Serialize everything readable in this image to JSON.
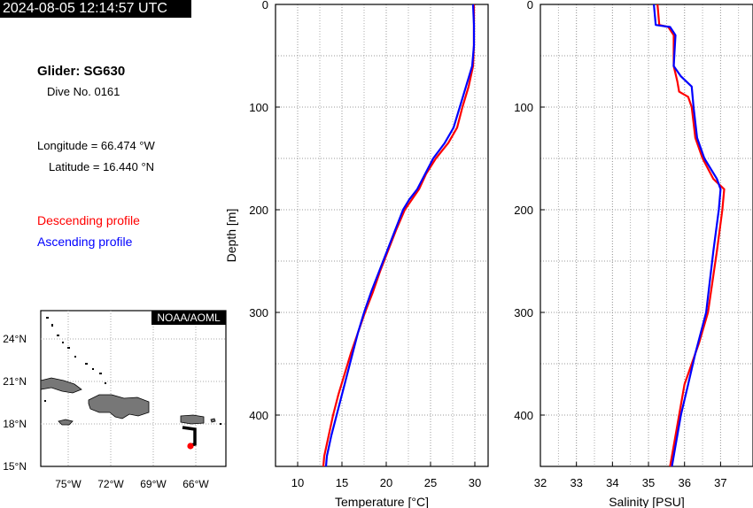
{
  "header": {
    "timestamp": "2024-08-05 12:14:57 UTC",
    "glider": "Glider: SG630",
    "dive": "Dive No. 0161",
    "longitude": "Longitude = 66.474 °W",
    "latitude": "Latitude = 16.440 °N",
    "descending_label": "Descending profile",
    "ascending_label": "Ascending profile"
  },
  "map": {
    "credit": "NOAA/AOML",
    "lat_ticks": [
      "24°N",
      "21°N",
      "18°N",
      "15°N"
    ],
    "lon_ticks": [
      "75°W",
      "72°W",
      "69°W",
      "66°W"
    ]
  },
  "colors": {
    "descending": "#ff0000",
    "ascending": "#0000ff",
    "grid": "#999999"
  },
  "chart_data": [
    {
      "type": "line",
      "xlabel": "Temperature [°C]",
      "ylabel": "Depth [m]",
      "xlim": [
        7.5,
        31.5
      ],
      "ylim": [
        0,
        450
      ],
      "y_inverted": true,
      "xticks": [
        10,
        15,
        20,
        25,
        30
      ],
      "yticks": [
        0,
        100,
        200,
        300,
        400
      ],
      "grid": true,
      "series": [
        {
          "name": "Descending profile",
          "color": "#ff0000",
          "points": [
            [
              29.9,
              0
            ],
            [
              29.9,
              20
            ],
            [
              29.9,
              40
            ],
            [
              29.8,
              60
            ],
            [
              29.3,
              80
            ],
            [
              28.6,
              100
            ],
            [
              28.0,
              120
            ],
            [
              27.0,
              135
            ],
            [
              25.6,
              150
            ],
            [
              24.5,
              165
            ],
            [
              23.7,
              180
            ],
            [
              22.9,
              190
            ],
            [
              22.1,
              200
            ],
            [
              21.1,
              220
            ],
            [
              20.2,
              240
            ],
            [
              19.3,
              260
            ],
            [
              18.5,
              280
            ],
            [
              17.6,
              300
            ],
            [
              16.8,
              320
            ],
            [
              16.0,
              340
            ],
            [
              15.3,
              360
            ],
            [
              14.6,
              380
            ],
            [
              14.0,
              400
            ],
            [
              13.5,
              420
            ],
            [
              13.0,
              440
            ],
            [
              12.9,
              450
            ]
          ]
        },
        {
          "name": "Ascending profile",
          "color": "#0000ff",
          "points": [
            [
              29.8,
              0
            ],
            [
              29.9,
              20
            ],
            [
              29.9,
              40
            ],
            [
              29.7,
              60
            ],
            [
              29.0,
              80
            ],
            [
              28.3,
              100
            ],
            [
              27.6,
              120
            ],
            [
              26.6,
              135
            ],
            [
              25.3,
              150
            ],
            [
              24.4,
              165
            ],
            [
              23.5,
              180
            ],
            [
              22.6,
              190
            ],
            [
              21.9,
              200
            ],
            [
              21.0,
              220
            ],
            [
              20.1,
              240
            ],
            [
              19.2,
              260
            ],
            [
              18.3,
              280
            ],
            [
              17.5,
              300
            ],
            [
              16.8,
              320
            ],
            [
              16.2,
              340
            ],
            [
              15.6,
              360
            ],
            [
              15.0,
              380
            ],
            [
              14.4,
              400
            ],
            [
              13.8,
              420
            ],
            [
              13.3,
              440
            ],
            [
              13.2,
              450
            ]
          ]
        }
      ]
    },
    {
      "type": "line",
      "xlabel": "Salinity [PSU]",
      "ylabel": "",
      "xlim": [
        32,
        37.9
      ],
      "ylim": [
        0,
        450
      ],
      "y_inverted": true,
      "xticks": [
        32,
        33,
        34,
        35,
        36,
        37
      ],
      "yticks": [
        0,
        100,
        200,
        300,
        400
      ],
      "grid": true,
      "series": [
        {
          "name": "Descending profile",
          "color": "#ff0000",
          "points": [
            [
              35.25,
              0
            ],
            [
              35.3,
              20
            ],
            [
              35.55,
              22
            ],
            [
              35.7,
              30
            ],
            [
              35.7,
              60
            ],
            [
              35.8,
              75
            ],
            [
              35.85,
              85
            ],
            [
              36.1,
              90
            ],
            [
              36.2,
              100
            ],
            [
              36.3,
              130
            ],
            [
              36.5,
              150
            ],
            [
              36.8,
              170
            ],
            [
              37.1,
              180
            ],
            [
              37.05,
              200
            ],
            [
              36.9,
              240
            ],
            [
              36.65,
              300
            ],
            [
              36.4,
              330
            ],
            [
              36.0,
              370
            ],
            [
              35.85,
              400
            ],
            [
              35.7,
              430
            ],
            [
              35.6,
              450
            ]
          ]
        },
        {
          "name": "Ascending profile",
          "color": "#0000ff",
          "points": [
            [
              35.15,
              0
            ],
            [
              35.2,
              20
            ],
            [
              35.6,
              22
            ],
            [
              35.75,
              30
            ],
            [
              35.7,
              60
            ],
            [
              35.9,
              70
            ],
            [
              36.2,
              80
            ],
            [
              36.25,
              100
            ],
            [
              36.35,
              130
            ],
            [
              36.55,
              150
            ],
            [
              36.9,
              170
            ],
            [
              37.0,
              180
            ],
            [
              36.95,
              200
            ],
            [
              36.8,
              240
            ],
            [
              36.6,
              300
            ],
            [
              36.3,
              340
            ],
            [
              36.1,
              370
            ],
            [
              35.9,
              400
            ],
            [
              35.75,
              430
            ],
            [
              35.65,
              450
            ]
          ]
        }
      ]
    }
  ]
}
